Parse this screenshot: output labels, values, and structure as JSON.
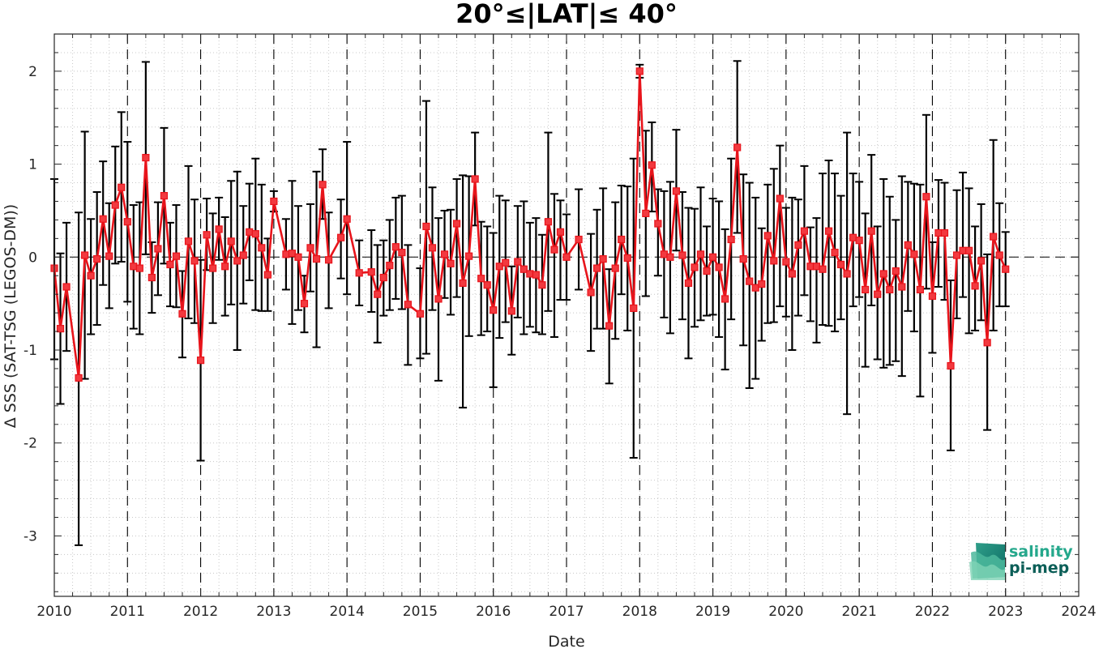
{
  "chart_data": {
    "type": "line",
    "title": "20°≤|LAT|≤ 40°",
    "xlabel": "Date",
    "ylabel": "Δ SSS (SAT-TSG (LEGOS-DM))",
    "xlim": [
      2010,
      2024
    ],
    "ylim": [
      -3.65,
      2.4
    ],
    "xticks": [
      "2010",
      "2011",
      "2012",
      "2013",
      "2014",
      "2015",
      "2016",
      "2017",
      "2018",
      "2019",
      "2020",
      "2021",
      "2022",
      "2023",
      "2024"
    ],
    "yticks": [
      "-3",
      "-2",
      "-1",
      "0",
      "1",
      "2"
    ],
    "grid": "minor-dotted",
    "year_dividers": "dashed",
    "zero_line": "dashed",
    "colors": {
      "line": "#e8141b",
      "errorbar": "#000000",
      "marker_edge": "#e8141b",
      "marker_fill": "#f2393f"
    },
    "series": [
      {
        "x": [
          "2010-01",
          "2010-02",
          "2010-03",
          "2010-05",
          "2010-06",
          "2010-07",
          "2010-08",
          "2010-09",
          "2010-10",
          "2010-11",
          "2010-12",
          "2011-01",
          "2011-02",
          "2011-03",
          "2011-04",
          "2011-05",
          "2011-06",
          "2011-07",
          "2011-08",
          "2011-09",
          "2011-10",
          "2011-11",
          "2011-12",
          "2012-01",
          "2012-02",
          "2012-03",
          "2012-04",
          "2012-05",
          "2012-06",
          "2012-07",
          "2012-08",
          "2012-09",
          "2012-10",
          "2012-11",
          "2012-12",
          "2013-01",
          "2013-03",
          "2013-04",
          "2013-05",
          "2013-06",
          "2013-07",
          "2013-08",
          "2013-09",
          "2013-10",
          "2013-12",
          "2014-01",
          "2014-03",
          "2014-05",
          "2014-06",
          "2014-07",
          "2014-08",
          "2014-09",
          "2014-10",
          "2014-11",
          "2015-01",
          "2015-02",
          "2015-03",
          "2015-04",
          "2015-05",
          "2015-06",
          "2015-07",
          "2015-08",
          "2015-09",
          "2015-10",
          "2015-11",
          "2015-12",
          "2016-01",
          "2016-02",
          "2016-03",
          "2016-04",
          "2016-05",
          "2016-06",
          "2016-07",
          "2016-08",
          "2016-09",
          "2016-10",
          "2016-11",
          "2016-12",
          "2017-01",
          "2017-03",
          "2017-05",
          "2017-06",
          "2017-07",
          "2017-08",
          "2017-09",
          "2017-10",
          "2017-11",
          "2017-12",
          "2018-01",
          "2018-02",
          "2018-03",
          "2018-04",
          "2018-05",
          "2018-06",
          "2018-07",
          "2018-08",
          "2018-09",
          "2018-10",
          "2018-11",
          "2018-12",
          "2019-01",
          "2019-02",
          "2019-03",
          "2019-04",
          "2019-05",
          "2019-06",
          "2019-07",
          "2019-08",
          "2019-09",
          "2019-10",
          "2019-11",
          "2019-12",
          "2020-01",
          "2020-02",
          "2020-03",
          "2020-04",
          "2020-05",
          "2020-06",
          "2020-07",
          "2020-08",
          "2020-09",
          "2020-10",
          "2020-11",
          "2020-12",
          "2021-01",
          "2021-02",
          "2021-03",
          "2021-04",
          "2021-05",
          "2021-06",
          "2021-07",
          "2021-08",
          "2021-09",
          "2021-10",
          "2021-11",
          "2021-12",
          "2022-01",
          "2022-02",
          "2022-03",
          "2022-04",
          "2022-05",
          "2022-06",
          "2022-07",
          "2022-08",
          "2022-09",
          "2022-10",
          "2022-11",
          "2022-12",
          "2023-01"
        ],
        "y": [
          -0.12,
          -0.77,
          -0.32,
          -1.3,
          0.02,
          -0.2,
          -0.02,
          0.41,
          0.01,
          0.56,
          0.75,
          0.38,
          -0.1,
          -0.12,
          1.07,
          -0.22,
          0.09,
          0.66,
          -0.08,
          0.01,
          -0.61,
          0.17,
          -0.04,
          -1.11,
          0.24,
          -0.12,
          0.3,
          -0.1,
          0.17,
          -0.04,
          0.02,
          0.27,
          0.25,
          0.1,
          -0.19,
          0.6,
          0.03,
          0.04,
          0.0,
          -0.5,
          0.1,
          -0.02,
          0.78,
          -0.03,
          0.21,
          0.41,
          -0.17,
          -0.16,
          -0.4,
          -0.22,
          -0.09,
          0.11,
          0.05,
          -0.51,
          -0.61,
          0.33,
          0.1,
          -0.45,
          0.03,
          -0.07,
          0.36,
          -0.28,
          0.01,
          0.84,
          -0.23,
          -0.3,
          -0.57,
          -0.1,
          -0.06,
          -0.58,
          -0.05,
          -0.13,
          -0.18,
          -0.19,
          -0.3,
          0.38,
          0.08,
          0.27,
          0.0,
          0.19,
          -0.38,
          -0.12,
          -0.02,
          -0.74,
          -0.12,
          0.19,
          -0.01,
          -0.55,
          2.0,
          0.47,
          0.99,
          0.36,
          0.03,
          0.0,
          0.71,
          0.02,
          -0.28,
          -0.11,
          0.03,
          -0.15,
          0.0,
          -0.11,
          -0.45,
          0.19,
          1.18,
          -0.02,
          -0.26,
          -0.33,
          -0.29,
          0.23,
          -0.04,
          0.63,
          -0.05,
          -0.18,
          0.13,
          0.28,
          -0.1,
          -0.1,
          -0.13,
          0.28,
          0.05,
          -0.08,
          -0.18,
          0.21,
          0.18,
          -0.35,
          0.28,
          -0.4,
          -0.18,
          -0.35,
          -0.15,
          -0.32,
          0.13,
          0.03,
          -0.35,
          0.65,
          -0.42,
          0.26,
          0.26,
          -1.17,
          0.02,
          0.07,
          0.07,
          -0.31,
          -0.04,
          -0.92,
          0.22,
          0.02,
          -0.13
        ],
        "err_low": [
          -1.1,
          -1.58,
          -1.01,
          -3.1,
          -1.31,
          -0.83,
          -0.73,
          -0.3,
          -0.55,
          -0.07,
          -0.05,
          -0.48,
          -0.77,
          -0.83,
          0.03,
          -0.6,
          -0.41,
          -0.07,
          -0.53,
          -0.54,
          -1.08,
          -0.66,
          -0.71,
          -2.19,
          -0.14,
          -0.71,
          -0.03,
          -0.63,
          -0.51,
          -1.0,
          -0.5,
          -0.25,
          -0.57,
          -0.58,
          -0.58,
          0.49,
          -0.35,
          -0.72,
          -0.57,
          -0.81,
          -0.37,
          -0.97,
          0.41,
          -0.55,
          -0.23,
          -0.4,
          -0.52,
          -0.59,
          -0.92,
          -0.63,
          -0.57,
          -0.45,
          -0.56,
          -1.16,
          -1.09,
          -1.04,
          -0.57,
          -1.33,
          -0.44,
          -0.62,
          -0.43,
          -1.62,
          -0.85,
          0.34,
          -0.84,
          -0.8,
          -1.4,
          -0.87,
          -0.7,
          -1.05,
          -0.65,
          -0.83,
          -0.75,
          -0.81,
          -0.83,
          -0.58,
          -0.86,
          -0.46,
          -0.46,
          -0.35,
          -1.01,
          -0.77,
          -0.77,
          -1.36,
          -0.88,
          -0.4,
          -0.79,
          -2.16,
          1.93,
          -0.42,
          0.49,
          -0.2,
          -0.65,
          -0.82,
          0.07,
          -0.67,
          -1.09,
          -0.75,
          -0.68,
          -0.63,
          -0.62,
          -0.86,
          -1.21,
          -0.67,
          0.26,
          -0.95,
          -1.41,
          -1.31,
          -0.9,
          -0.71,
          -0.7,
          -0.53,
          -0.64,
          -1.0,
          -0.63,
          -0.41,
          -0.69,
          -0.92,
          -0.73,
          -0.74,
          -0.8,
          -0.67,
          -1.69,
          -0.53,
          -0.43,
          -1.18,
          -0.52,
          -1.1,
          -1.19,
          -1.16,
          -1.12,
          -1.28,
          -0.58,
          -0.8,
          -1.5,
          -0.34,
          -1.03,
          -0.32,
          -0.46,
          -2.08,
          -0.66,
          -0.43,
          -0.82,
          -0.79,
          -0.68,
          -1.86,
          -0.79,
          -0.53,
          -0.53
        ],
        "err_high": [
          0.84,
          0.04,
          0.37,
          0.48,
          1.35,
          0.41,
          0.7,
          1.03,
          0.58,
          1.19,
          1.56,
          1.24,
          0.56,
          0.59,
          2.1,
          0.16,
          0.59,
          1.39,
          0.37,
          0.56,
          -0.15,
          0.98,
          0.62,
          -0.03,
          0.63,
          0.47,
          0.64,
          0.43,
          0.82,
          0.92,
          0.55,
          0.79,
          1.06,
          0.78,
          0.2,
          0.71,
          0.41,
          0.82,
          0.55,
          -0.2,
          0.57,
          0.92,
          1.16,
          0.48,
          0.62,
          1.24,
          0.18,
          0.29,
          0.13,
          0.18,
          0.4,
          0.64,
          0.66,
          0.13,
          -0.12,
          1.68,
          0.75,
          0.42,
          0.5,
          0.51,
          0.84,
          0.88,
          0.87,
          1.34,
          0.38,
          0.33,
          0.26,
          0.66,
          0.61,
          -0.1,
          0.55,
          0.6,
          0.37,
          0.42,
          0.24,
          1.34,
          0.68,
          0.61,
          0.46,
          0.73,
          0.25,
          0.51,
          0.74,
          -0.13,
          0.59,
          0.77,
          0.76,
          1.06,
          2.07,
          1.36,
          1.45,
          0.73,
          0.71,
          0.81,
          1.37,
          0.7,
          0.53,
          0.52,
          0.75,
          0.33,
          0.63,
          0.6,
          0.3,
          1.06,
          2.11,
          0.89,
          0.8,
          0.64,
          0.31,
          0.78,
          0.95,
          1.2,
          0.53,
          0.64,
          0.62,
          0.98,
          0.32,
          0.42,
          0.9,
          1.04,
          0.9,
          0.66,
          1.34,
          0.9,
          0.81,
          0.47,
          1.1,
          0.33,
          0.84,
          0.65,
          0.4,
          0.87,
          0.81,
          0.79,
          0.78,
          1.53,
          0.16,
          0.83,
          0.8,
          -0.25,
          0.72,
          0.91,
          0.74,
          0.33,
          0.57,
          0.03,
          1.26,
          0.58,
          0.27
        ]
      }
    ],
    "logo": {
      "line1": "salinity",
      "line2": "pi-mep"
    }
  }
}
